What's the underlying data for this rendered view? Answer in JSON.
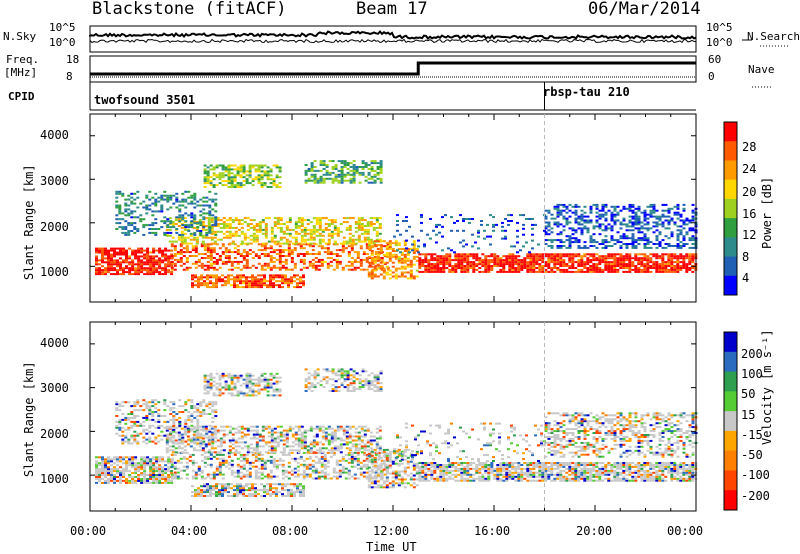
{
  "header": {
    "station": "Blackstone (fitACF)",
    "beam": "Beam 17",
    "date": "06/Mar/2014"
  },
  "params": {
    "nsky_label": "N.Sky",
    "nsearch_label": "N.Search",
    "noise_ticks": [
      "10^5",
      "10^0"
    ],
    "freq_label_1": "Freq.",
    "freq_label_2": "[MHz]",
    "freq_ticks": [
      "18",
      "8"
    ],
    "nave_label": "Nave",
    "nave_ticks": [
      "60",
      "0"
    ],
    "cpid_label": "CPID",
    "cpid_segments": [
      {
        "name": "twofsound 3501",
        "start_hour": 0
      },
      {
        "name": "rbsp-tau 210",
        "start_hour": 18
      }
    ]
  },
  "chart_data": [
    {
      "type": "heatmap",
      "ylabel": "Slant Range [km]",
      "ylim": [
        180,
        4500
      ],
      "y_ticks": [
        1000,
        2000,
        3000,
        4000
      ],
      "colorbar": {
        "label": "Power [dB]",
        "ticks": [
          "28",
          "24",
          "20",
          "16",
          "12",
          "8",
          "4"
        ],
        "colors": [
          "#ff0000",
          "#ff5a00",
          "#ff9b00",
          "#ffd700",
          "#9ed11f",
          "#2f9e3f",
          "#2e8b8b",
          "#1f5fb4",
          "#0000ff"
        ]
      }
    },
    {
      "type": "heatmap",
      "ylabel": "Slant Range [km]",
      "ylim": [
        180,
        4500
      ],
      "y_ticks": [
        1000,
        2000,
        3000,
        4000
      ],
      "colorbar": {
        "label": "Velocity [m s⁻¹]",
        "ticks": [
          "200",
          "100",
          "50",
          "15",
          "-15",
          "-50",
          "-100",
          "-200"
        ],
        "colors": [
          "#0000cd",
          "#2a6bbf",
          "#2e9e4f",
          "#55cc33",
          "#c8c8c8",
          "#ffa500",
          "#ff7f00",
          "#ff4500",
          "#ff0000"
        ]
      }
    }
  ],
  "x_axis": {
    "label": "Time UT",
    "ticks": [
      "00:00",
      "04:00",
      "08:00",
      "12:00",
      "16:00",
      "20:00",
      "00:00"
    ],
    "range_hours": [
      0,
      24
    ]
  }
}
